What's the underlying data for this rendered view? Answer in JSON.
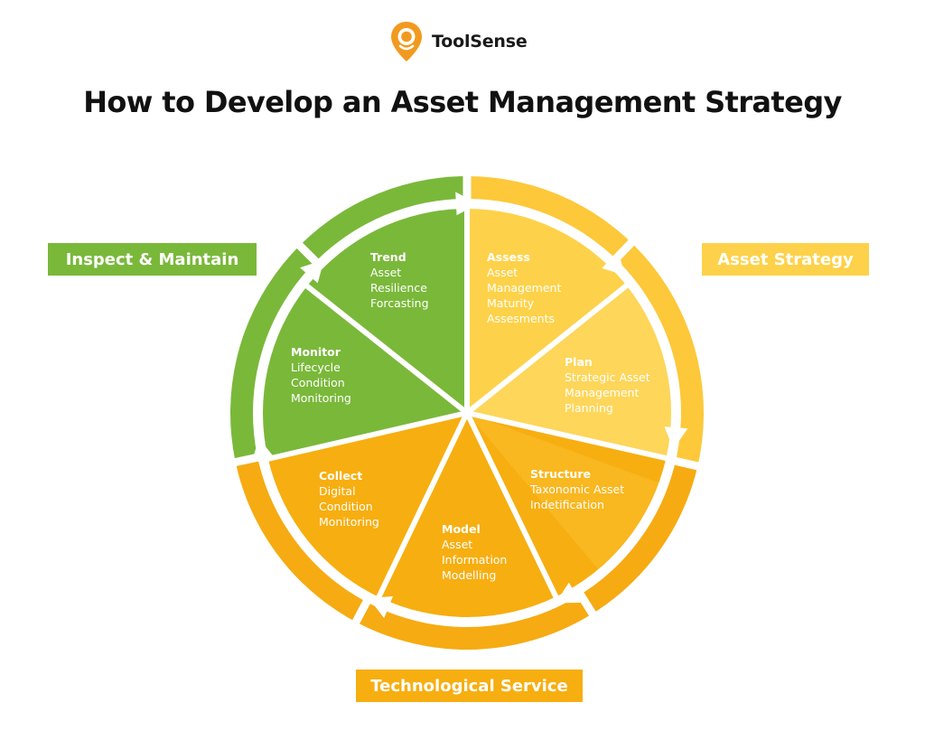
{
  "brand": {
    "name": "ToolSense",
    "icon": "location-pin-icon"
  },
  "title": "How to Develop an Asset Management Strategy",
  "tags": {
    "inspect": "Inspect & Maintain",
    "strategy": "Asset Strategy",
    "tech": "Technological Service"
  },
  "colors": {
    "brand_orange": "#F29A1F",
    "green": "#7AB83A",
    "yellow": "#FDD24A",
    "yellow_outer": "#FDC83A",
    "orange": "#F7AE10",
    "orange_outer": "#F6AB12"
  },
  "segments": [
    {
      "title": "Assess",
      "lines": [
        "Asset",
        "Management",
        "Maturity",
        "Assesments"
      ]
    },
    {
      "title": "Plan",
      "lines": [
        "Strategic Asset",
        "Management",
        "Planning"
      ]
    },
    {
      "title": "Structure",
      "lines": [
        "Taxonomic Asset",
        "Indetification"
      ]
    },
    {
      "title": "Model",
      "lines": [
        "Asset",
        "Information",
        "Modelling"
      ]
    },
    {
      "title": "Collect",
      "lines": [
        "Digital",
        "Condition",
        "Monitoring"
      ]
    },
    {
      "title": "Monitor",
      "lines": [
        "Lifecycle",
        "Condition",
        "Monitoring"
      ]
    },
    {
      "title": "Trend",
      "lines": [
        "Asset",
        "Resilience",
        "Forcasting"
      ]
    }
  ]
}
